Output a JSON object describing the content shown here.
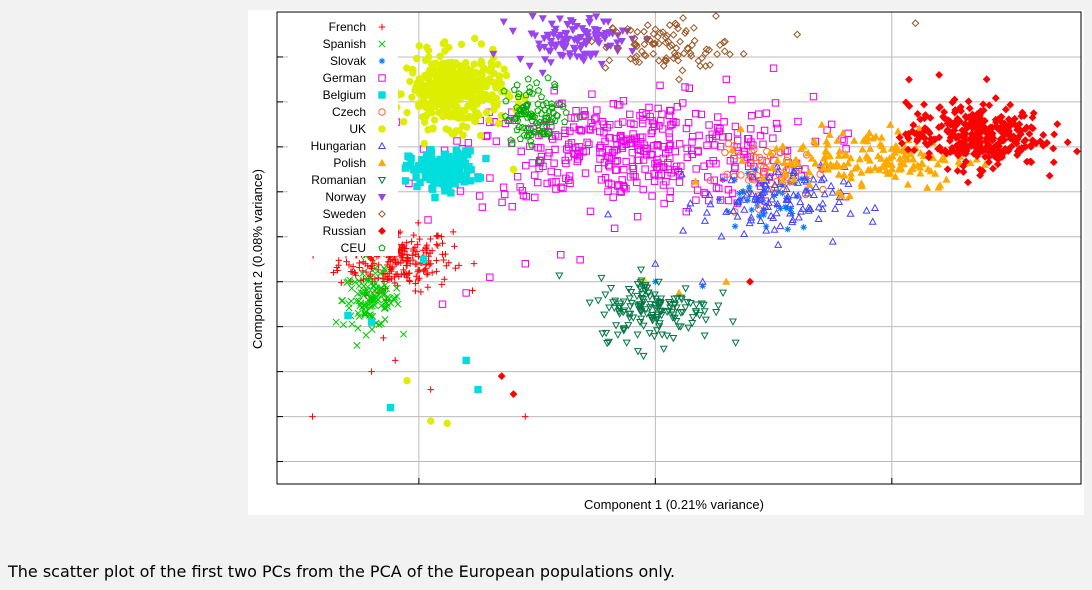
{
  "caption": "The scatter plot of the first two PCs from the PCA of the European populations only.",
  "chart_data": {
    "type": "scatter",
    "title": "",
    "xlabel": "Component 1 (0.21% variance)",
    "ylabel": "Component 2 (0.08% variance)",
    "xlim": [
      -0.6,
      2.8
    ],
    "ylim": [
      -1.1,
      1.0
    ],
    "grid": true,
    "legend_position": "top-left",
    "series": [
      {
        "name": "French",
        "color": "#ff0000",
        "marker": "plus",
        "cx": -0.1,
        "cy": -0.1,
        "sx": 0.12,
        "sy": 0.07,
        "n": 260,
        "extra": [
          [
            -0.15,
            -0.45
          ],
          [
            -0.1,
            -0.55
          ],
          [
            -0.45,
            -0.8
          ],
          [
            0.45,
            -0.8
          ],
          [
            0.05,
            -0.68
          ],
          [
            0.2,
            -0.55
          ],
          [
            -0.2,
            -0.6
          ]
        ]
      },
      {
        "name": "Spanish",
        "color": "#00cc00",
        "marker": "x",
        "cx": -0.2,
        "cy": -0.28,
        "sx": 0.06,
        "sy": 0.06,
        "n": 110,
        "extra": [
          [
            -0.35,
            -0.38
          ],
          [
            -0.3,
            -0.2
          ]
        ]
      },
      {
        "name": "Slovak",
        "color": "#0077ff",
        "marker": "asterisk",
        "cx": 1.45,
        "cy": 0.15,
        "sx": 0.12,
        "sy": 0.07,
        "n": 45,
        "extra": [
          [
            1.0,
            -0.2
          ],
          [
            1.2,
            -0.22
          ]
        ]
      },
      {
        "name": "German",
        "color": "#ee00ee",
        "marker": "square",
        "cx": 0.9,
        "cy": 0.38,
        "sx": 0.38,
        "sy": 0.12,
        "n": 420,
        "extra": [
          [
            0.3,
            -0.18
          ],
          [
            0.45,
            -0.12
          ],
          [
            0.6,
            -0.08
          ],
          [
            0.2,
            -0.25
          ],
          [
            0.1,
            -0.3
          ],
          [
            1.5,
            0.75
          ],
          [
            1.3,
            0.7
          ]
        ]
      },
      {
        "name": "Belgium",
        "color": "#00dddd",
        "marker": "filledsquare",
        "cx": 0.1,
        "cy": 0.3,
        "sx": 0.07,
        "sy": 0.04,
        "n": 170,
        "extra": [
          [
            -0.3,
            -0.35
          ],
          [
            -0.2,
            -0.38
          ],
          [
            -0.12,
            -0.76
          ],
          [
            0.2,
            -0.55
          ],
          [
            0.25,
            -0.68
          ],
          [
            0.02,
            -0.1
          ]
        ]
      },
      {
        "name": "Czech",
        "color": "#ff6633",
        "marker": "circle",
        "cx": 1.5,
        "cy": 0.28,
        "sx": 0.12,
        "sy": 0.06,
        "n": 60,
        "extra": []
      },
      {
        "name": "UK",
        "color": "#ddee00",
        "marker": "filledcircle",
        "cx": 0.15,
        "cy": 0.65,
        "sx": 0.1,
        "sy": 0.08,
        "n": 400,
        "extra": [
          [
            -0.05,
            -0.64
          ],
          [
            0.05,
            -0.82
          ],
          [
            0.12,
            -0.83
          ],
          [
            0.95,
            -0.2
          ],
          [
            0.4,
            0.3
          ]
        ]
      },
      {
        "name": "Hungarian",
        "color": "#4444ff",
        "marker": "triangle",
        "cx": 1.5,
        "cy": 0.15,
        "sx": 0.15,
        "sy": 0.08,
        "n": 110,
        "extra": [
          [
            1.0,
            -0.12
          ],
          [
            1.2,
            -0.2
          ],
          [
            0.8,
            0.1
          ]
        ]
      },
      {
        "name": "Polish",
        "color": "#ffaa00",
        "marker": "filledtriangle",
        "cx": 1.9,
        "cy": 0.35,
        "sx": 0.22,
        "sy": 0.07,
        "n": 160,
        "extra": [
          [
            1.1,
            -0.25
          ],
          [
            1.3,
            -0.2
          ]
        ]
      },
      {
        "name": "Romanian",
        "color": "#007744",
        "marker": "invtriangle",
        "cx": 1.0,
        "cy": -0.32,
        "sx": 0.12,
        "sy": 0.07,
        "n": 150,
        "extra": [
          [
            0.95,
            -0.53
          ],
          [
            1.05,
            -0.44
          ]
        ]
      },
      {
        "name": "Norway",
        "color": "#9944ee",
        "marker": "filledinvtriangle",
        "cx": 0.65,
        "cy": 0.88,
        "sx": 0.12,
        "sy": 0.05,
        "n": 110,
        "extra": [
          [
            0.75,
            0.98
          ]
        ]
      },
      {
        "name": "Sweden",
        "color": "#995522",
        "marker": "diamond",
        "cx": 1.05,
        "cy": 0.85,
        "sx": 0.13,
        "sy": 0.06,
        "n": 90,
        "extra": [
          [
            1.6,
            0.9
          ],
          [
            2.1,
            0.95
          ],
          [
            1.1,
            0.7
          ]
        ]
      },
      {
        "name": "Russian",
        "color": "#ff0000",
        "marker": "filleddiamond",
        "cx": 2.35,
        "cy": 0.45,
        "sx": 0.14,
        "sy": 0.07,
        "n": 330,
        "extra": [
          [
            0.35,
            -0.62
          ],
          [
            0.4,
            -0.7
          ],
          [
            1.4,
            -0.2
          ],
          [
            2.2,
            0.72
          ],
          [
            2.6,
            0.55
          ]
        ]
      },
      {
        "name": "CEU",
        "color": "#00aa00",
        "marker": "pentagon",
        "cx": 0.5,
        "cy": 0.55,
        "sx": 0.07,
        "sy": 0.07,
        "n": 100,
        "extra": []
      }
    ]
  }
}
